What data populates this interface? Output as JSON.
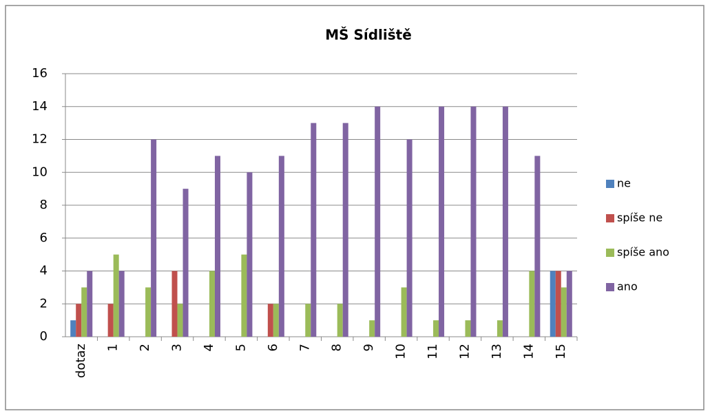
{
  "chart_data": {
    "type": "bar",
    "title": "MŠ Sídliště",
    "categories": [
      "dotaz",
      "1",
      "2",
      "3",
      "4",
      "5",
      "6",
      "7",
      "8",
      "9",
      "10",
      "11",
      "12",
      "13",
      "14",
      "15"
    ],
    "series": [
      {
        "name": "ne",
        "color": "#4f81bd",
        "values": [
          1,
          0,
          0,
          0,
          0,
          0,
          0,
          0,
          0,
          0,
          0,
          0,
          0,
          0,
          0,
          4
        ]
      },
      {
        "name": "spíše ne",
        "color": "#c0504d",
        "values": [
          2,
          2,
          0,
          4,
          0,
          0,
          2,
          0,
          0,
          0,
          0,
          0,
          0,
          0,
          0,
          4
        ]
      },
      {
        "name": "spíše ano",
        "color": "#9bbb59",
        "values": [
          3,
          5,
          3,
          2,
          4,
          5,
          2,
          2,
          2,
          1,
          3,
          1,
          1,
          1,
          4,
          3
        ]
      },
      {
        "name": "ano",
        "color": "#8064a2",
        "values": [
          4,
          4,
          12,
          9,
          11,
          10,
          11,
          13,
          13,
          14,
          12,
          14,
          14,
          14,
          11,
          4
        ]
      }
    ],
    "ylim": [
      0,
      16
    ],
    "yticks": [
      0,
      2,
      4,
      6,
      8,
      10,
      12,
      14,
      16
    ],
    "grid": true,
    "legend": "right"
  }
}
